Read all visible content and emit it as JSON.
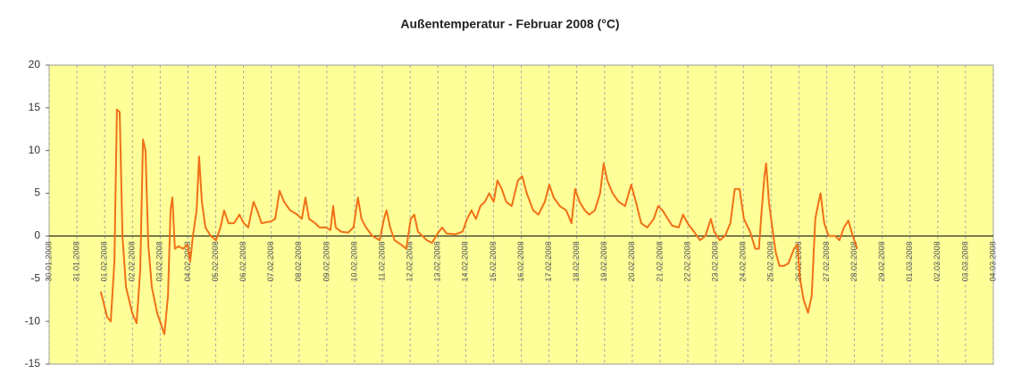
{
  "chart_data": {
    "type": "line",
    "title": "Außentemperatur - Februar 2008 (°C)",
    "xlim": [
      0,
      34
    ],
    "xticks": [
      {
        "value": 0,
        "label": "30.01.2008"
      },
      {
        "value": 1,
        "label": "31.01.2008"
      },
      {
        "value": 2,
        "label": "01.02.2008"
      },
      {
        "value": 3,
        "label": "02.02.2008"
      },
      {
        "value": 4,
        "label": "03.02.2008"
      },
      {
        "value": 5,
        "label": "04.02.2008"
      },
      {
        "value": 6,
        "label": "05.02.2008"
      },
      {
        "value": 7,
        "label": "06.02.2008"
      },
      {
        "value": 8,
        "label": "07.02.2008"
      },
      {
        "value": 9,
        "label": "08.02.2008"
      },
      {
        "value": 10,
        "label": "09.02.2008"
      },
      {
        "value": 11,
        "label": "10.02.2008"
      },
      {
        "value": 12,
        "label": "11.02.2008"
      },
      {
        "value": 13,
        "label": "12.02.2008"
      },
      {
        "value": 14,
        "label": "13.02.2008"
      },
      {
        "value": 15,
        "label": "14.02.2008"
      },
      {
        "value": 16,
        "label": "15.02.2008"
      },
      {
        "value": 17,
        "label": "16.02.2008"
      },
      {
        "value": 18,
        "label": "17.02.2008"
      },
      {
        "value": 19,
        "label": "18.02.2008"
      },
      {
        "value": 20,
        "label": "19.02.2008"
      },
      {
        "value": 21,
        "label": "20.02.2008"
      },
      {
        "value": 22,
        "label": "21.02.2008"
      },
      {
        "value": 23,
        "label": "22.02.2008"
      },
      {
        "value": 24,
        "label": "23.02.2008"
      },
      {
        "value": 25,
        "label": "24.02.2008"
      },
      {
        "value": 26,
        "label": "25.02.2008"
      },
      {
        "value": 27,
        "label": "26.02.2008"
      },
      {
        "value": 28,
        "label": "27.02.2008"
      },
      {
        "value": 29,
        "label": "28.02.2008"
      },
      {
        "value": 30,
        "label": "29.02.2008"
      },
      {
        "value": 31,
        "label": "01.03.2008"
      },
      {
        "value": 32,
        "label": "02.03.2008"
      },
      {
        "value": 33,
        "label": "03.03.2008"
      },
      {
        "value": 34,
        "label": "04.03.2008"
      }
    ],
    "ylim": [
      -15,
      20
    ],
    "yticks": [
      -15,
      -10,
      -5,
      0,
      5,
      10,
      15,
      20
    ],
    "grid": true,
    "series": [
      {
        "color": "#f07018",
        "x": [
          1.86,
          2.09,
          2.22,
          2.35,
          2.44,
          2.54,
          2.64,
          2.77,
          2.99,
          3.15,
          3.28,
          3.38,
          3.47,
          3.57,
          3.7,
          3.89,
          4.15,
          4.28,
          4.37,
          4.44,
          4.53,
          4.66,
          4.82,
          4.98,
          5.08,
          5.18,
          5.31,
          5.4,
          5.5,
          5.63,
          5.82,
          6.01,
          6.17,
          6.3,
          6.46,
          6.66,
          6.85,
          7.01,
          7.17,
          7.36,
          7.49,
          7.65,
          7.97,
          8.14,
          8.3,
          8.46,
          8.68,
          8.94,
          9.1,
          9.23,
          9.36,
          9.58,
          9.74,
          9.97,
          10.13,
          10.23,
          10.32,
          10.51,
          10.77,
          10.96,
          11.12,
          11.25,
          11.41,
          11.64,
          11.9,
          12.06,
          12.15,
          12.28,
          12.44,
          12.67,
          12.86,
          13.02,
          13.15,
          13.28,
          13.44,
          13.6,
          13.79,
          13.99,
          14.15,
          14.31,
          14.63,
          14.89,
          15.05,
          15.21,
          15.37,
          15.53,
          15.69,
          15.85,
          16.01,
          16.14,
          16.3,
          16.46,
          16.66,
          16.88,
          17.04,
          17.2,
          17.43,
          17.62,
          17.85,
          18.01,
          18.17,
          18.39,
          18.62,
          18.81,
          18.94,
          19.1,
          19.29,
          19.45,
          19.65,
          19.84,
          19.97,
          20.1,
          20.29,
          20.51,
          20.74,
          20.96,
          21.13,
          21.32,
          21.54,
          21.77,
          21.93,
          22.09,
          22.28,
          22.44,
          22.67,
          22.83,
          22.99,
          23.22,
          23.44,
          23.63,
          23.83,
          23.95,
          24.15,
          24.34,
          24.53,
          24.69,
          24.86,
          25.02,
          25.24,
          25.43,
          25.56,
          25.66,
          25.76,
          25.82,
          25.92,
          26.08,
          26.17,
          26.3,
          26.46,
          26.62,
          26.82,
          26.95,
          27.04,
          27.17,
          27.33,
          27.46,
          27.59,
          27.68,
          27.78,
          27.91,
          28.07,
          28.3,
          28.46,
          28.62,
          28.78,
          28.94,
          29.1
        ],
        "values": [
          -6.5,
          -9.5,
          -10,
          -3,
          14.8,
          14.5,
          0,
          -6,
          -9,
          -10.2,
          -4,
          11.3,
          10,
          -1,
          -6,
          -9,
          -11.5,
          -7,
          3,
          4.5,
          -1.5,
          -1.2,
          -1.5,
          -1,
          -3,
          0,
          3,
          9.3,
          4,
          1,
          0,
          -0.5,
          1,
          3,
          1.5,
          1.5,
          2.5,
          1.5,
          1,
          4,
          3,
          1.5,
          1.7,
          2,
          5.3,
          4,
          3,
          2.5,
          2,
          4.5,
          2,
          1.5,
          1,
          1,
          0.7,
          3.5,
          1,
          0.5,
          0.4,
          1,
          4.5,
          2,
          1,
          0,
          -0.5,
          2,
          3,
          1,
          -0.5,
          -1,
          -1.5,
          2,
          2.5,
          0.5,
          0,
          -0.5,
          -0.8,
          0.3,
          1,
          0.3,
          0.2,
          0.5,
          2,
          3,
          2,
          3.5,
          4,
          5,
          4,
          6.5,
          5.5,
          4,
          3.5,
          6.5,
          7,
          5,
          3,
          2.5,
          4,
          6,
          4.5,
          3.5,
          3,
          1.5,
          5.5,
          4,
          3,
          2.5,
          3,
          5,
          8.5,
          6.5,
          5,
          4,
          3.5,
          6,
          4,
          1.5,
          1,
          2,
          3.5,
          3,
          2,
          1.2,
          1,
          2.5,
          1.5,
          0.5,
          -0.5,
          0,
          2,
          0.5,
          -0.5,
          0,
          1.5,
          5.5,
          5.5,
          2,
          0.5,
          -1.5,
          -1.5,
          3,
          7,
          8.5,
          4,
          0,
          -2,
          -3.5,
          -3.5,
          -3.2,
          -1.5,
          -1,
          -5,
          -7.5,
          -9,
          -7,
          2,
          3.5,
          5,
          1.5,
          0,
          0,
          -0.5,
          1,
          1.8,
          0,
          -1.5
        ]
      }
    ]
  }
}
